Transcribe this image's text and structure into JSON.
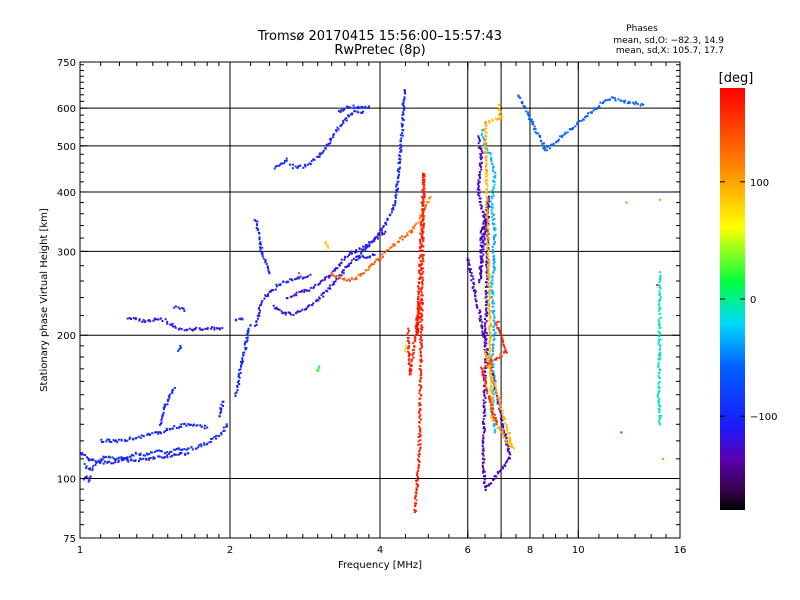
{
  "header": {
    "title_line1": "Tromsø 20170415 15:56:00–15:57:43",
    "title_line2": "RwPretec (8p)"
  },
  "stats": {
    "heading": "Phases",
    "line_o": "mean, sd,O: −82.3, 14.9",
    "line_x": "mean, sd,X: 105.7, 17.7"
  },
  "colorbar": {
    "unit": "[deg]",
    "range": [
      -180,
      180
    ],
    "tick_labels": [
      "100",
      "0",
      "−100"
    ],
    "tick_values": [
      100,
      0,
      -100
    ]
  },
  "chart_data": {
    "type": "scatter",
    "xlabel": "Frequency [MHz]",
    "ylabel": "Stationary phase Virtual Height [km]",
    "xscale": "log",
    "yscale": "log",
    "xlim": [
      1,
      16
    ],
    "ylim": [
      75,
      750
    ],
    "x_ticks": [
      1,
      2,
      4,
      6,
      8,
      10,
      16
    ],
    "x_tick_labels": [
      "1",
      "2",
      "4",
      "6",
      "8",
      "10",
      "16"
    ],
    "x_gridlines": [
      2,
      4,
      6,
      7,
      8,
      10
    ],
    "y_ticks": [
      75,
      100,
      200,
      300,
      400,
      500,
      600,
      750
    ],
    "y_tick_labels": [
      "75",
      "100",
      "200",
      "300",
      "400",
      "500",
      "600",
      "750"
    ],
    "y_gridlines": [
      100,
      200,
      300,
      400,
      500,
      600
    ],
    "traces": [
      {
        "phase": -95,
        "points": [
          [
            1.02,
            107
          ],
          [
            1.05,
            104
          ],
          [
            1.08,
            108
          ],
          [
            1.12,
            111
          ],
          [
            1.18,
            110
          ],
          [
            1.25,
            111
          ],
          [
            1.3,
            113
          ],
          [
            1.35,
            112
          ],
          [
            1.42,
            114
          ],
          [
            1.5,
            113
          ],
          [
            1.55,
            115
          ],
          [
            1.62,
            115
          ],
          [
            1.7,
            116
          ],
          [
            1.78,
            118
          ],
          [
            1.85,
            121
          ],
          [
            1.92,
            124
          ],
          [
            1.97,
            130
          ]
        ]
      },
      {
        "phase": -105,
        "points": [
          [
            1.0,
            113
          ],
          [
            1.02,
            112
          ],
          [
            1.04,
            110
          ],
          [
            1.06,
            109
          ],
          [
            1.1,
            108
          ],
          [
            1.15,
            108
          ],
          [
            1.2,
            109
          ],
          [
            1.28,
            109
          ],
          [
            1.35,
            110
          ],
          [
            1.45,
            111
          ],
          [
            1.55,
            112
          ],
          [
            1.65,
            113
          ]
        ]
      },
      {
        "phase": -110,
        "points": [
          [
            1.02,
            100
          ],
          [
            1.03,
            101
          ],
          [
            1.04,
            99
          ],
          [
            1.05,
            101
          ]
        ]
      },
      {
        "phase": -100,
        "points": [
          [
            1.1,
            120
          ],
          [
            1.2,
            120
          ],
          [
            1.3,
            122
          ],
          [
            1.45,
            125
          ],
          [
            1.55,
            128
          ],
          [
            1.65,
            130
          ],
          [
            1.8,
            128
          ]
        ]
      },
      {
        "phase": -95,
        "points": [
          [
            1.45,
            130
          ],
          [
            1.47,
            138
          ],
          [
            1.49,
            143
          ],
          [
            1.52,
            150
          ],
          [
            1.55,
            155
          ]
        ]
      },
      {
        "phase": -110,
        "points": [
          [
            1.25,
            217
          ],
          [
            1.3,
            216
          ],
          [
            1.35,
            214
          ],
          [
            1.4,
            215
          ],
          [
            1.45,
            217
          ],
          [
            1.5,
            213
          ],
          [
            1.55,
            208
          ],
          [
            1.6,
            206
          ]
        ]
      },
      {
        "phase": -115,
        "points": [
          [
            1.62,
            205
          ],
          [
            1.68,
            206
          ],
          [
            1.73,
            206
          ],
          [
            1.8,
            206
          ],
          [
            1.88,
            207
          ],
          [
            1.93,
            207
          ]
        ]
      },
      {
        "phase": -100,
        "points": [
          [
            1.55,
            230
          ],
          [
            1.6,
            228
          ],
          [
            1.62,
            225
          ]
        ]
      },
      {
        "phase": -90,
        "points": [
          [
            1.58,
            185
          ],
          [
            1.59,
            190
          ]
        ]
      },
      {
        "phase": -100,
        "points": [
          [
            1.9,
            135
          ],
          [
            1.92,
            140
          ],
          [
            1.94,
            145
          ]
        ]
      },
      {
        "phase": -100,
        "points": [
          [
            2.05,
            150
          ],
          [
            2.07,
            155
          ],
          [
            2.08,
            160
          ],
          [
            2.09,
            165
          ],
          [
            2.1,
            170
          ],
          [
            2.12,
            180
          ],
          [
            2.14,
            185
          ],
          [
            2.15,
            190
          ],
          [
            2.17,
            200
          ],
          [
            2.18,
            205
          ],
          [
            2.2,
            210
          ]
        ]
      },
      {
        "phase": -95,
        "points": [
          [
            2.05,
            215
          ],
          [
            2.08,
            215
          ],
          [
            2.12,
            216
          ]
        ]
      },
      {
        "phase": -110,
        "points": [
          [
            2.25,
            210
          ],
          [
            2.28,
            220
          ],
          [
            2.3,
            230
          ],
          [
            2.35,
            240
          ],
          [
            2.4,
            245
          ],
          [
            2.45,
            250
          ],
          [
            2.5,
            255
          ],
          [
            2.6,
            260
          ],
          [
            2.7,
            262
          ],
          [
            2.8,
            265
          ],
          [
            2.9,
            268
          ]
        ]
      },
      {
        "phase": -100,
        "points": [
          [
            2.25,
            350
          ],
          [
            2.28,
            330
          ],
          [
            2.3,
            310
          ],
          [
            2.33,
            295
          ],
          [
            2.36,
            285
          ],
          [
            2.4,
            270
          ]
        ]
      },
      {
        "phase": -115,
        "points": [
          [
            2.45,
            230
          ],
          [
            2.52,
            225
          ],
          [
            2.6,
            222
          ],
          [
            2.7,
            222
          ],
          [
            2.8,
            225
          ],
          [
            2.9,
            230
          ],
          [
            3.0,
            238
          ],
          [
            3.1,
            245
          ],
          [
            3.2,
            255
          ],
          [
            3.3,
            265
          ],
          [
            3.4,
            275
          ],
          [
            3.5,
            285
          ],
          [
            3.6,
            290
          ],
          [
            3.7,
            292
          ],
          [
            3.8,
            293
          ],
          [
            3.9,
            295
          ]
        ]
      },
      {
        "phase": -120,
        "points": [
          [
            2.6,
            240
          ],
          [
            2.75,
            245
          ],
          [
            2.9,
            250
          ],
          [
            3.0,
            255
          ],
          [
            3.1,
            262
          ],
          [
            3.2,
            270
          ],
          [
            3.3,
            280
          ],
          [
            3.4,
            290
          ],
          [
            3.5,
            298
          ],
          [
            3.6,
            302
          ],
          [
            3.7,
            305
          ],
          [
            3.8,
            310
          ],
          [
            3.9,
            318
          ],
          [
            4.0,
            325
          ],
          [
            4.1,
            330
          ]
        ]
      },
      {
        "phase": -100,
        "points": [
          [
            3.6,
            290
          ],
          [
            3.7,
            300
          ],
          [
            3.8,
            310
          ],
          [
            3.9,
            320
          ],
          [
            4.0,
            330
          ],
          [
            4.1,
            340
          ],
          [
            4.15,
            350
          ],
          [
            4.2,
            360
          ],
          [
            4.25,
            370
          ],
          [
            4.28,
            380
          ],
          [
            4.32,
            400
          ],
          [
            4.35,
            430
          ],
          [
            4.38,
            460
          ],
          [
            4.4,
            490
          ],
          [
            4.42,
            520
          ],
          [
            4.44,
            550
          ],
          [
            4.45,
            580
          ],
          [
            4.46,
            610
          ],
          [
            4.47,
            640
          ],
          [
            4.48,
            655
          ]
        ]
      },
      {
        "phase": -105,
        "points": [
          [
            2.65,
            455
          ],
          [
            2.7,
            450
          ],
          [
            2.8,
            452
          ],
          [
            2.9,
            460
          ],
          [
            3.0,
            475
          ],
          [
            3.1,
            490
          ],
          [
            3.2,
            520
          ],
          [
            3.3,
            545
          ],
          [
            3.4,
            565
          ],
          [
            3.5,
            585
          ],
          [
            3.6,
            590
          ],
          [
            3.7,
            590
          ]
        ]
      },
      {
        "phase": -95,
        "points": [
          [
            3.3,
            590
          ],
          [
            3.4,
            600
          ],
          [
            3.5,
            605
          ],
          [
            3.6,
            603
          ],
          [
            3.7,
            600
          ],
          [
            3.8,
            605
          ]
        ]
      },
      {
        "phase": -90,
        "points": [
          [
            2.45,
            450
          ],
          [
            2.55,
            460
          ],
          [
            2.6,
            470
          ]
        ]
      },
      {
        "phase": 135,
        "points": [
          [
            3.2,
            270
          ],
          [
            3.3,
            265
          ],
          [
            3.4,
            262
          ],
          [
            3.5,
            262
          ],
          [
            3.6,
            265
          ],
          [
            3.7,
            270
          ],
          [
            3.8,
            278
          ],
          [
            3.9,
            285
          ],
          [
            4.0,
            290
          ],
          [
            4.1,
            298
          ],
          [
            4.2,
            305
          ],
          [
            4.3,
            312
          ],
          [
            4.4,
            318
          ],
          [
            4.5,
            325
          ],
          [
            4.6,
            330
          ],
          [
            4.7,
            340
          ]
        ]
      },
      {
        "phase": 120,
        "points": [
          [
            4.75,
            345
          ],
          [
            4.85,
            360
          ],
          [
            4.95,
            375
          ],
          [
            5.05,
            390
          ]
        ]
      },
      {
        "phase": 80,
        "points": [
          [
            3.1,
            315
          ],
          [
            3.15,
            305
          ]
        ]
      },
      {
        "phase": 150,
        "points": [
          [
            2.75,
            270
          ]
        ]
      },
      {
        "phase": 20,
        "points": [
          [
            3.0,
            168
          ],
          [
            3.02,
            172
          ]
        ]
      },
      {
        "phase": 90,
        "points": [
          [
            4.5,
            185
          ],
          [
            4.52,
            190
          ]
        ]
      },
      {
        "phase": 165,
        "points": [
          [
            4.55,
            205
          ],
          [
            4.6,
            165
          ],
          [
            4.8,
            235
          ],
          [
            4.75,
            200
          ],
          [
            4.9,
            440
          ],
          [
            4.8,
            115
          ],
          [
            4.7,
            85
          ]
        ]
      },
      {
        "phase": -30,
        "points": [
          [
            6.4,
            540
          ],
          [
            6.5,
            500
          ],
          [
            6.7,
            470
          ],
          [
            6.8,
            430
          ],
          [
            6.7,
            380
          ],
          [
            6.8,
            330
          ],
          [
            6.75,
            300
          ],
          [
            6.8,
            280
          ],
          [
            6.7,
            260
          ],
          [
            6.8,
            200
          ],
          [
            6.7,
            180
          ],
          [
            6.8,
            160
          ],
          [
            6.7,
            140
          ],
          [
            6.8,
            125
          ]
        ]
      },
      {
        "phase": -130,
        "points": [
          [
            6.3,
            520
          ],
          [
            6.4,
            480
          ],
          [
            6.3,
            400
          ],
          [
            6.5,
            350
          ],
          [
            6.4,
            330
          ],
          [
            6.35,
            260
          ],
          [
            6.6,
            390
          ],
          [
            6.45,
            110
          ],
          [
            6.5,
            95
          ],
          [
            7.3,
            110
          ],
          [
            6.0,
            290
          ]
        ]
      },
      {
        "phase": 95,
        "points": [
          [
            6.9,
            610
          ],
          [
            7.0,
            570
          ],
          [
            6.5,
            560
          ],
          [
            6.7,
            150
          ],
          [
            6.7,
            135
          ],
          [
            7.4,
            115
          ],
          [
            6.5,
            185
          ]
        ]
      },
      {
        "phase": 160,
        "points": [
          [
            6.9,
            215
          ],
          [
            6.85,
            210
          ],
          [
            7.2,
            185
          ],
          [
            6.4,
            170
          ],
          [
            6.85,
            130
          ]
        ]
      },
      {
        "phase": -60,
        "points": [
          [
            7.6,
            640
          ],
          [
            8.6,
            490
          ],
          [
            11.5,
            630
          ],
          [
            13.5,
            610
          ]
        ]
      },
      {
        "phase": 110,
        "points": [
          [
            12.5,
            380
          ],
          [
            14.6,
            385
          ],
          [
            14.8,
            110
          ]
        ]
      },
      {
        "phase": -10,
        "points": [
          [
            14.6,
            270
          ],
          [
            14.5,
            150
          ],
          [
            14.6,
            130
          ]
        ]
      },
      {
        "phase": 165,
        "points": [
          [
            12.2,
            125
          ],
          [
            14.4,
            255
          ]
        ]
      }
    ]
  }
}
